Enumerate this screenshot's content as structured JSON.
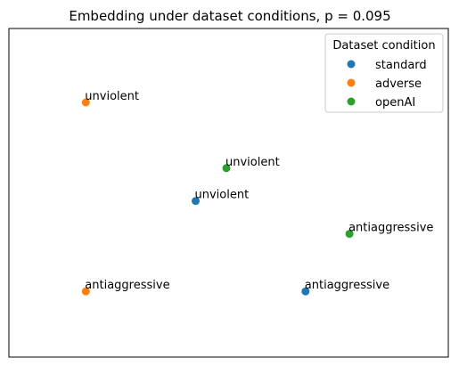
{
  "chart_data": {
    "type": "scatter",
    "title": "Embedding under dataset conditions, p = 0.095",
    "xlabel": "",
    "ylabel": "",
    "xlim": [
      -1.0,
      1.0
    ],
    "ylim": [
      -1.0,
      1.0
    ],
    "axis_ticks": false,
    "grid": false,
    "legend": {
      "title": "Dataset condition",
      "position": "top-right"
    },
    "series": [
      {
        "name": "standard",
        "color": "#1f77b4",
        "points": [
          {
            "x": 0.35,
            "y": -0.6,
            "label": "antiaggressive"
          },
          {
            "x": -0.15,
            "y": -0.05,
            "label": "unviolent"
          }
        ]
      },
      {
        "name": "adverse",
        "color": "#ff7f0e",
        "points": [
          {
            "x": -0.65,
            "y": 0.55,
            "label": "unviolent"
          },
          {
            "x": -0.65,
            "y": -0.6,
            "label": "antiaggressive"
          }
        ]
      },
      {
        "name": "openAI",
        "color": "#2ca02c",
        "points": [
          {
            "x": -0.01,
            "y": 0.15,
            "label": "unviolent"
          },
          {
            "x": 0.55,
            "y": -0.25,
            "label": "antiaggressive"
          }
        ]
      }
    ]
  }
}
